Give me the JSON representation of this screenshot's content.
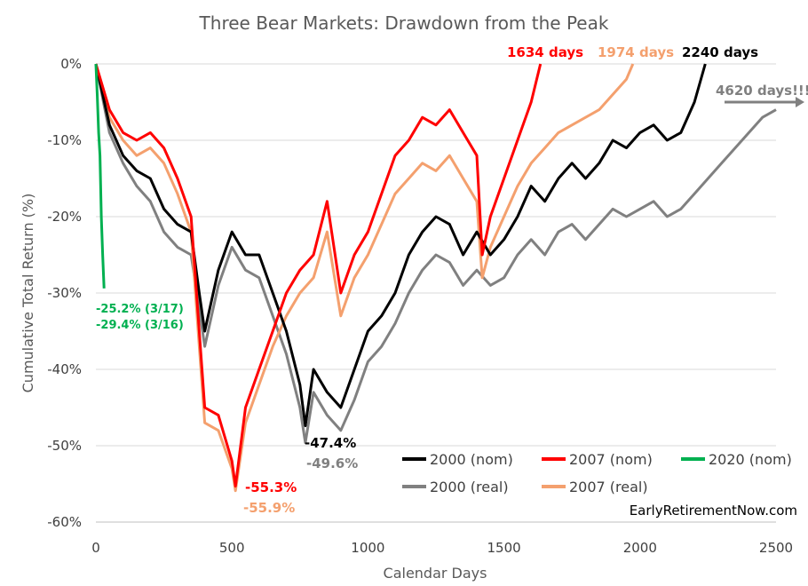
{
  "chart_data": {
    "type": "line",
    "title": "Three Bear Markets: Drawdown from the Peak",
    "xlabel": "Calendar Days",
    "ylabel": "Cumulative Total Return (%)",
    "xlim": [
      0,
      2500
    ],
    "ylim": [
      -60,
      0
    ],
    "x_ticks": [
      "0",
      "500",
      "1000",
      "1500",
      "2000",
      "2500"
    ],
    "x_tick_values": [
      0,
      500,
      1000,
      1500,
      2000,
      2500
    ],
    "y_ticks": [
      "0%",
      "-10%",
      "-20%",
      "-30%",
      "-40%",
      "-50%",
      "-60%"
    ],
    "y_tick_values": [
      0,
      -10,
      -20,
      -30,
      -40,
      -50,
      -60
    ],
    "grid": true,
    "legend_position": "bottom-right",
    "series": [
      {
        "name": "2000 (nom)",
        "color": "#000000",
        "x": [
          0,
          50,
          100,
          150,
          200,
          250,
          300,
          350,
          380,
          400,
          450,
          500,
          550,
          600,
          650,
          700,
          750,
          770,
          800,
          850,
          900,
          950,
          1000,
          1050,
          1100,
          1150,
          1200,
          1250,
          1300,
          1350,
          1400,
          1450,
          1500,
          1550,
          1600,
          1650,
          1700,
          1750,
          1800,
          1850,
          1900,
          1950,
          2000,
          2050,
          2100,
          2150,
          2200,
          2240
        ],
        "y": [
          0,
          -8,
          -12,
          -14,
          -15,
          -19,
          -21,
          -22,
          -30,
          -35,
          -27,
          -22,
          -25,
          -25,
          -30,
          -35,
          -42,
          -47.4,
          -40,
          -43,
          -45,
          -40,
          -35,
          -33,
          -30,
          -25,
          -22,
          -20,
          -21,
          -25,
          -22,
          -25,
          -23,
          -20,
          -16,
          -18,
          -15,
          -13,
          -15,
          -13,
          -10,
          -11,
          -9,
          -8,
          -10,
          -9,
          -5,
          0
        ]
      },
      {
        "name": "2000 (real)",
        "color": "#808080",
        "x": [
          0,
          50,
          100,
          150,
          200,
          250,
          300,
          350,
          380,
          400,
          450,
          500,
          550,
          600,
          650,
          700,
          750,
          770,
          800,
          850,
          900,
          950,
          1000,
          1050,
          1100,
          1150,
          1200,
          1250,
          1300,
          1350,
          1400,
          1450,
          1500,
          1550,
          1600,
          1650,
          1700,
          1750,
          1800,
          1850,
          1900,
          1950,
          2000,
          2050,
          2100,
          2150,
          2200,
          2250,
          2300,
          2350,
          2400,
          2450,
          2500
        ],
        "y": [
          0,
          -9,
          -13,
          -16,
          -18,
          -22,
          -24,
          -25,
          -32,
          -37,
          -29,
          -24,
          -27,
          -28,
          -33,
          -38,
          -45,
          -49.6,
          -43,
          -46,
          -48,
          -44,
          -39,
          -37,
          -34,
          -30,
          -27,
          -25,
          -26,
          -29,
          -27,
          -29,
          -28,
          -25,
          -23,
          -25,
          -22,
          -21,
          -23,
          -21,
          -19,
          -20,
          -19,
          -18,
          -20,
          -19,
          -17,
          -15,
          -13,
          -11,
          -9,
          -7,
          -6
        ]
      },
      {
        "name": "2007 (nom)",
        "color": "#ff0000",
        "x": [
          0,
          50,
          100,
          150,
          200,
          250,
          300,
          350,
          380,
          400,
          450,
          500,
          513,
          550,
          600,
          650,
          700,
          750,
          800,
          850,
          900,
          950,
          1000,
          1050,
          1100,
          1150,
          1200,
          1250,
          1300,
          1350,
          1400,
          1420,
          1450,
          1500,
          1550,
          1600,
          1634
        ],
        "y": [
          0,
          -6,
          -9,
          -10,
          -9,
          -11,
          -15,
          -20,
          -35,
          -45,
          -46,
          -52,
          -55.3,
          -45,
          -40,
          -35,
          -30,
          -27,
          -25,
          -18,
          -30,
          -25,
          -22,
          -17,
          -12,
          -10,
          -7,
          -8,
          -6,
          -9,
          -12,
          -25,
          -20,
          -15,
          -10,
          -5,
          0
        ]
      },
      {
        "name": "2007 (real)",
        "color": "#f4a06e",
        "x": [
          0,
          50,
          100,
          150,
          200,
          250,
          300,
          350,
          380,
          400,
          450,
          500,
          513,
          550,
          600,
          650,
          700,
          750,
          800,
          850,
          900,
          950,
          1000,
          1050,
          1100,
          1150,
          1200,
          1250,
          1300,
          1350,
          1400,
          1420,
          1450,
          1500,
          1550,
          1600,
          1650,
          1700,
          1750,
          1800,
          1850,
          1900,
          1950,
          1974
        ],
        "y": [
          0,
          -7,
          -10,
          -12,
          -11,
          -13,
          -17,
          -22,
          -37,
          -47,
          -48,
          -53,
          -55.9,
          -47,
          -42,
          -37,
          -33,
          -30,
          -28,
          -22,
          -33,
          -28,
          -25,
          -21,
          -17,
          -15,
          -13,
          -14,
          -12,
          -15,
          -18,
          -28,
          -24,
          -20,
          -16,
          -13,
          -11,
          -9,
          -8,
          -7,
          -6,
          -4,
          -2,
          0
        ]
      },
      {
        "name": "2020 (nom)",
        "color": "#00b050",
        "x": [
          0,
          5,
          10,
          15,
          20,
          25,
          30
        ],
        "y": [
          0,
          -4,
          -9,
          -12,
          -20,
          -25.2,
          -29.4
        ]
      }
    ],
    "annotations": [
      {
        "text": "1634 days",
        "color": "#ff0000"
      },
      {
        "text": "1974 days",
        "color": "#f4a06e"
      },
      {
        "text": "2240 days",
        "color": "#000000"
      },
      {
        "text": "4620 days!!!",
        "color": "#808080"
      },
      {
        "text": "-25.2% (3/17)",
        "color": "#00b050"
      },
      {
        "text": "-29.4% (3/16)",
        "color": "#00b050"
      },
      {
        "text": "-47.4%",
        "color": "#000000"
      },
      {
        "text": "-49.6%",
        "color": "#808080"
      },
      {
        "text": "-55.3%",
        "color": "#ff0000"
      },
      {
        "text": "-55.9%",
        "color": "#f4a06e"
      }
    ],
    "source_label": "EarlyRetirementNow.com"
  }
}
